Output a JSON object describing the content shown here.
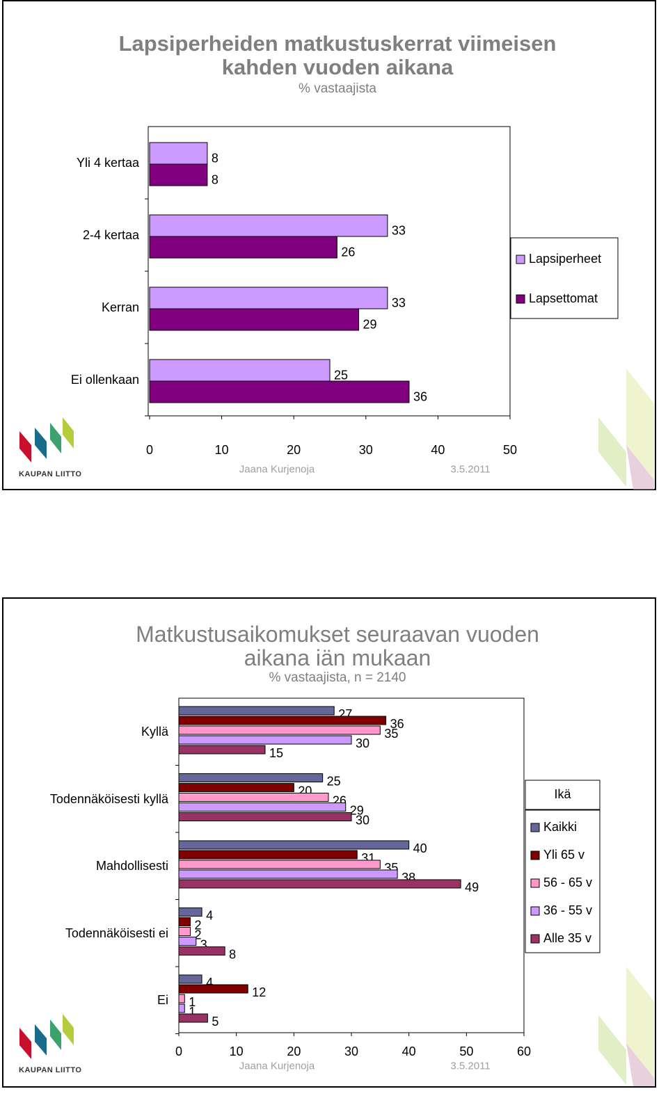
{
  "chart_data": [
    {
      "type": "bar",
      "orientation": "horizontal",
      "title": "Lapsiperheiden matkustuskerrat viimeisen kahden vuoden aikana",
      "subtitle": "% vastaajista",
      "categories": [
        "Yli 4 kertaa",
        "2-4 kertaa",
        "Kerran",
        "Ei ollenkaan"
      ],
      "series": [
        {
          "name": "Lapsiperheet",
          "color": "#cc99ff",
          "values": [
            8,
            33,
            33,
            25
          ]
        },
        {
          "name": "Lapsettomat",
          "color": "#800080",
          "values": [
            8,
            26,
            29,
            36
          ]
        }
      ],
      "xlim": [
        0,
        50
      ],
      "xticks": [
        0,
        10,
        20,
        30,
        40,
        50
      ],
      "legend": "right",
      "author": "Jaana Kurjenoja",
      "date": "3.5.2011",
      "logo": "KAUPAN LIITTO"
    },
    {
      "type": "bar",
      "orientation": "horizontal",
      "title": "Matkustusaikomukset seuraavan vuoden aikana iän mukaan",
      "subtitle": "% vastaajista, n = 2140",
      "categories": [
        "Kyllä",
        "Todennäköisesti kyllä",
        "Mahdollisesti",
        "Todennäköisesti ei",
        "Ei"
      ],
      "legend_title": "Ikä",
      "series": [
        {
          "name": "Kaikki",
          "color": "#666699",
          "values": [
            27,
            25,
            40,
            4,
            4
          ]
        },
        {
          "name": "Yli 65 v",
          "color": "#800000",
          "values": [
            36,
            20,
            31,
            2,
            12
          ]
        },
        {
          "name": "56 - 65 v",
          "color": "#ff99cc",
          "values": [
            35,
            26,
            35,
            2,
            1
          ]
        },
        {
          "name": "36 - 55 v",
          "color": "#cc99ff",
          "values": [
            30,
            29,
            38,
            3,
            1
          ]
        },
        {
          "name": "Alle 35 v",
          "color": "#993366",
          "values": [
            15,
            30,
            49,
            8,
            5
          ]
        }
      ],
      "xlim": [
        0,
        60
      ],
      "xticks": [
        0,
        10,
        20,
        30,
        40,
        50,
        60
      ],
      "legend": "right",
      "author": "Jaana Kurjenoja",
      "date": "3.5.2011",
      "logo": "KAUPAN LIITTO"
    }
  ]
}
